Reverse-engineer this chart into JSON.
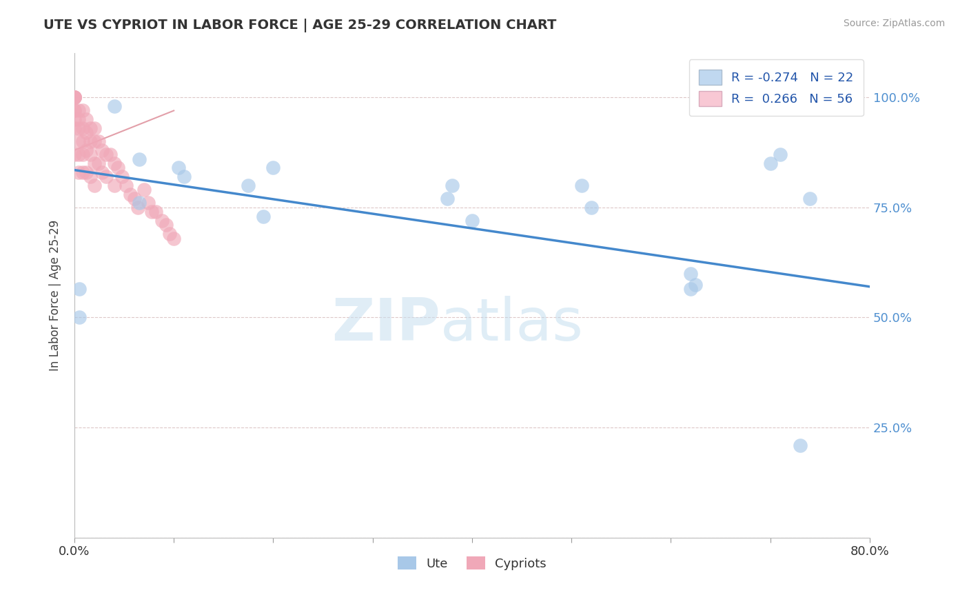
{
  "title": "UTE VS CYPRIOT IN LABOR FORCE | AGE 25-29 CORRELATION CHART",
  "ylabel": "In Labor Force | Age 25-29",
  "source_text": "Source: ZipAtlas.com",
  "watermark_zip": "ZIP",
  "watermark_atlas": "atlas",
  "xmin": 0.0,
  "xmax": 0.8,
  "ymin": 0.0,
  "ymax": 1.1,
  "ytick_positions": [
    0.0,
    0.25,
    0.5,
    0.75,
    1.0
  ],
  "yticklabels_right": [
    "",
    "25.0%",
    "50.0%",
    "75.0%",
    "100.0%"
  ],
  "ute_color": "#a8c8e8",
  "cypriot_color": "#f0a8b8",
  "trendline_color": "#4488cc",
  "R_ute": -0.274,
  "N_ute": 22,
  "R_cypriot": 0.266,
  "N_cypriot": 56,
  "legend_box_color_ute": "#c0d8f0",
  "legend_box_color_cypriot": "#f8c8d4",
  "ute_points_x": [
    0.005,
    0.005,
    0.04,
    0.065,
    0.065,
    0.105,
    0.11,
    0.175,
    0.19,
    0.2,
    0.375,
    0.38,
    0.4,
    0.51,
    0.52,
    0.62,
    0.62,
    0.625,
    0.7,
    0.71,
    0.73,
    0.74
  ],
  "ute_points_y": [
    0.565,
    0.5,
    0.98,
    0.86,
    0.76,
    0.84,
    0.82,
    0.8,
    0.73,
    0.84,
    0.77,
    0.8,
    0.72,
    0.8,
    0.75,
    0.6,
    0.565,
    0.575,
    0.85,
    0.87,
    0.21,
    0.77
  ],
  "cypriot_points_x": [
    0.0,
    0.0,
    0.0,
    0.0,
    0.0,
    0.0,
    0.0,
    0.0,
    0.0,
    0.0,
    0.004,
    0.004,
    0.004,
    0.004,
    0.004,
    0.004,
    0.008,
    0.008,
    0.008,
    0.008,
    0.008,
    0.012,
    0.012,
    0.012,
    0.012,
    0.016,
    0.016,
    0.016,
    0.016,
    0.02,
    0.02,
    0.02,
    0.02,
    0.024,
    0.024,
    0.028,
    0.028,
    0.032,
    0.032,
    0.036,
    0.04,
    0.04,
    0.044,
    0.048,
    0.052,
    0.056,
    0.06,
    0.064,
    0.07,
    0.074,
    0.078,
    0.082,
    0.088,
    0.092,
    0.096,
    0.1
  ],
  "cypriot_points_y": [
    1.0,
    1.0,
    1.0,
    1.0,
    1.0,
    0.97,
    0.97,
    0.95,
    0.93,
    0.87,
    0.97,
    0.95,
    0.93,
    0.9,
    0.87,
    0.83,
    0.97,
    0.93,
    0.9,
    0.87,
    0.83,
    0.95,
    0.92,
    0.88,
    0.83,
    0.93,
    0.9,
    0.87,
    0.82,
    0.93,
    0.9,
    0.85,
    0.8,
    0.9,
    0.85,
    0.88,
    0.83,
    0.87,
    0.82,
    0.87,
    0.85,
    0.8,
    0.84,
    0.82,
    0.8,
    0.78,
    0.77,
    0.75,
    0.79,
    0.76,
    0.74,
    0.74,
    0.72,
    0.71,
    0.69,
    0.68
  ],
  "cypriot_trendline_x": [
    0.0,
    0.1
  ],
  "cypriot_trendline_y": [
    0.88,
    0.97
  ],
  "trendline_x": [
    0.0,
    0.8
  ],
  "trendline_y": [
    0.835,
    0.57
  ]
}
